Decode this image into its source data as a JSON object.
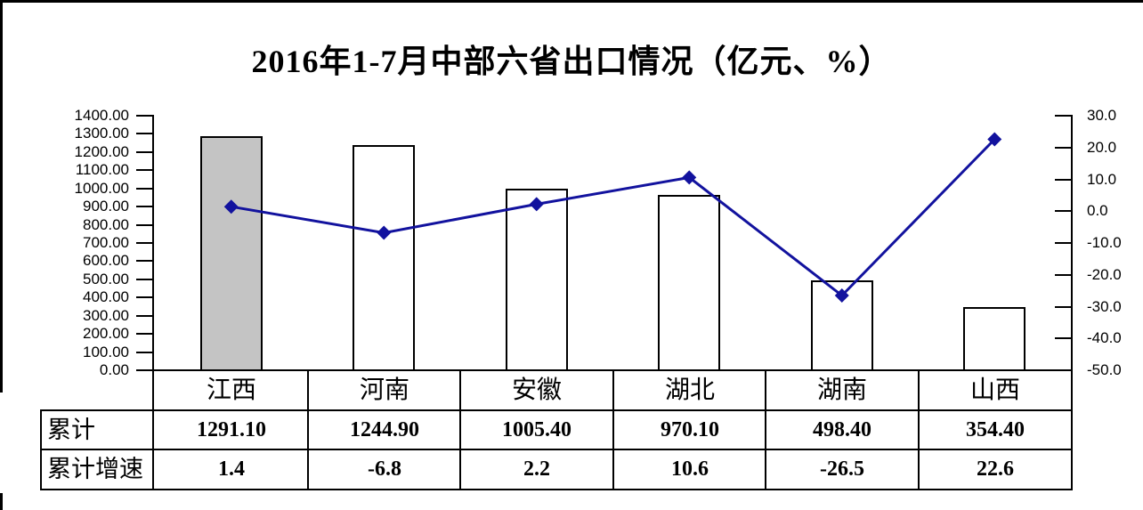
{
  "title": "2016年1-7月中部六省出口情况（亿元、%）",
  "chart_data": {
    "type": "bar+line combo",
    "title": "2016年1-7月中部六省出口情况（亿元、%）",
    "categories": [
      "江西",
      "河南",
      "安徽",
      "湖北",
      "湖南",
      "山西"
    ],
    "series": [
      {
        "name": "累计",
        "type": "bar",
        "axis": "left",
        "unit": "亿元",
        "values": [
          1291.1,
          1244.9,
          1005.4,
          970.1,
          498.4,
          354.4
        ]
      },
      {
        "name": "累计增速",
        "type": "line",
        "axis": "right",
        "unit": "%",
        "values": [
          1.4,
          -6.8,
          2.2,
          10.6,
          -26.5,
          22.6
        ]
      }
    ],
    "left_axis": {
      "min": 0,
      "max": 1400,
      "tick_labels": [
        "1400.00",
        "1300.00",
        "1200.00",
        "1100.00",
        "1000.00",
        "900.00",
        "800.00",
        "700.00",
        "600.00",
        "500.00",
        "400.00",
        "300.00",
        "200.00",
        "100.00",
        "0.00"
      ]
    },
    "right_axis": {
      "min": -50,
      "max": 30,
      "tick_labels": [
        "30.0",
        "20.0",
        "10.0",
        "0.0",
        "-10.0",
        "-20.0",
        "-30.0",
        "-40.0",
        "-50.0"
      ]
    },
    "highlight_index": 0,
    "grid": false,
    "legend": false,
    "colors": {
      "highlight_bar_fill": "#C4C4C4",
      "bar_fill": "#FFFFFF",
      "bar_border": "#000000",
      "line": "#12129E",
      "axis": "#000000"
    }
  },
  "table": {
    "columns": [
      "江西",
      "河南",
      "安徽",
      "湖北",
      "湖南",
      "山西"
    ],
    "rows": [
      {
        "header": "累计",
        "values": [
          "1291.10",
          "1244.90",
          "1005.40",
          "970.10",
          "498.40",
          "354.40"
        ]
      },
      {
        "header": "累计增速",
        "values": [
          "1.4",
          "-6.8",
          "2.2",
          "10.6",
          "-26.5",
          "22.6"
        ]
      }
    ]
  }
}
